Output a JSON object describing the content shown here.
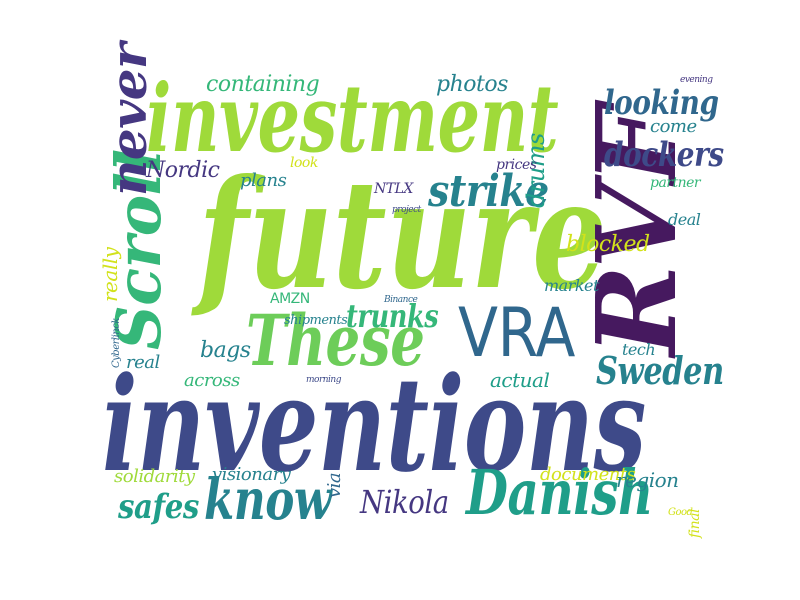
{
  "colors": {
    "dark_purple": "#46195f",
    "purple": "#453781",
    "indigo": "#3e4a89",
    "blue": "#30678d",
    "teal": "#26828e",
    "sea": "#1f9e89",
    "green": "#35b779",
    "lime": "#6dcd59",
    "yellowgreen": "#9fda3a",
    "yellow": "#d2e21b"
  },
  "words": {
    "future": "future",
    "inventions": "inventions",
    "investment": "investment",
    "RVF": "RVF",
    "These": "These",
    "Scroll": "Scroll",
    "VRA": "VRA",
    "Danish": "Danish",
    "know": "know",
    "never": "never",
    "strike": "strike",
    "dockers": "dockers",
    "looking": "looking",
    "Sweden": "Sweden",
    "Nikola": "Nikola",
    "safes": "safes",
    "trunks": "trunks",
    "drums": "drums",
    "blocked": "blocked",
    "containing": "containing",
    "photos": "photos",
    "come": "come",
    "Nordic": "Nordic",
    "plans": "plans",
    "NTLX": "NTLX",
    "prices": "prices",
    "look": "look",
    "partner": "partner",
    "deal": "deal",
    "project": "project",
    "really": "really",
    "AMZN": "AMZN",
    "Binance": "Binance",
    "market": "market",
    "shipments": "shipments",
    "bags": "bags",
    "tech": "tech",
    "real": "real",
    "Cyberlinck": "Cyberlinck",
    "across": "across",
    "morning": "morning",
    "actual": "actual",
    "solidarity": "solidarity",
    "visionary": "visionary",
    "via": "via",
    "documents": "documents",
    "region": "region",
    "final": "final",
    "Good": "Good",
    "evening": "evening"
  }
}
